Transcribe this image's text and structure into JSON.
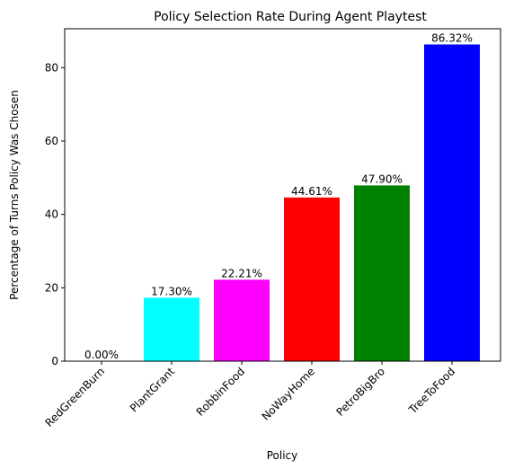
{
  "chart_data": {
    "type": "bar",
    "title": "Policy Selection Rate During Agent Playtest",
    "xlabel": "Policy",
    "ylabel": "Percentage of Turns Policy Was Chosen",
    "categories": [
      "RedGreenBurn",
      "PlantGrant",
      "RobbinFood",
      "NoWayHome",
      "PetroBigBro",
      "TreeToFood"
    ],
    "values": [
      0.0,
      17.3,
      22.21,
      44.61,
      47.9,
      86.32
    ],
    "value_labels": [
      "0.00%",
      "17.30%",
      "22.21%",
      "44.61%",
      "47.90%",
      "86.32%"
    ],
    "colors": [
      "#ffff00",
      "#00ffff",
      "#ff00ff",
      "#ff0000",
      "#008000",
      "#0000ff"
    ],
    "ylim": [
      0,
      90.6
    ],
    "yticks": [
      0,
      20,
      40,
      60,
      80
    ],
    "grid": false,
    "legend": "none"
  }
}
